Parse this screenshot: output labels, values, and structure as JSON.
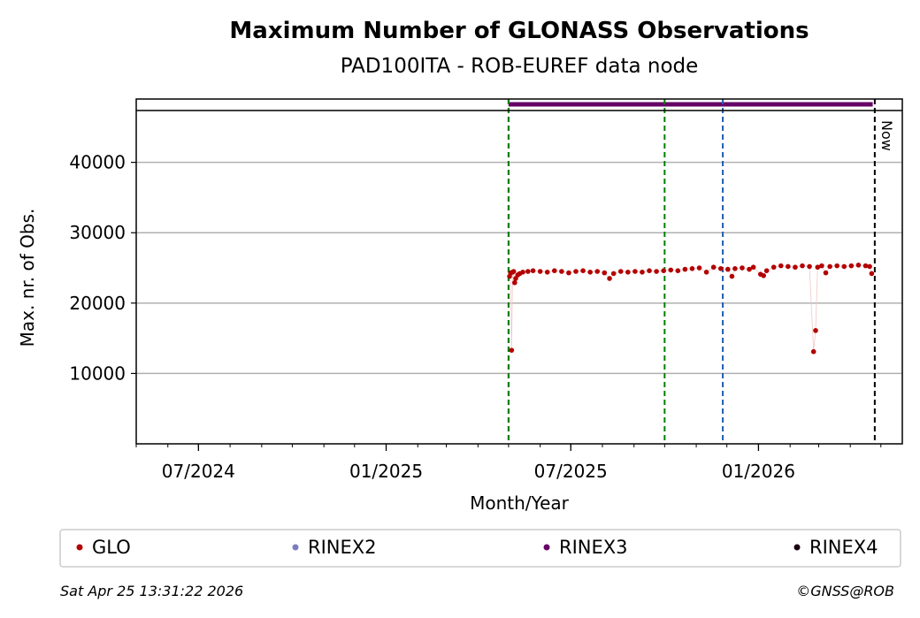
{
  "chart_data": {
    "type": "scatter",
    "title": "Maximum Number of GLONASS Observations",
    "subtitle": "PAD100ITA - ROB-EUREF data node",
    "xlabel": "Month/Year",
    "ylabel": "Max. nr. of Obs.",
    "xlim": [
      "2024-05-01",
      "2026-05-22"
    ],
    "ylim": [
      0,
      49000
    ],
    "x_ticks": [
      {
        "date": "2024-07-01",
        "label": "07/2024"
      },
      {
        "date": "2025-01-01",
        "label": "01/2025"
      },
      {
        "date": "2025-07-01",
        "label": "07/2025"
      },
      {
        "date": "2026-01-01",
        "label": "01/2026"
      }
    ],
    "y_ticks": [
      10000,
      20000,
      30000,
      40000
    ],
    "y_tick_labels": [
      "10000",
      "20000",
      "30000",
      "40000"
    ],
    "grid": "horizontal",
    "legend_placement": "bottom",
    "series": [
      {
        "name": "GLO",
        "color": "#b30000",
        "points": [
          [
            "2025-05-02",
            23800
          ],
          [
            "2025-05-03",
            24300
          ],
          [
            "2025-05-04",
            13300
          ],
          [
            "2025-05-05",
            24400
          ],
          [
            "2025-05-06",
            24500
          ],
          [
            "2025-05-07",
            22900
          ],
          [
            "2025-05-08",
            23500
          ],
          [
            "2025-05-10",
            24000
          ],
          [
            "2025-05-12",
            24200
          ],
          [
            "2025-05-15",
            24400
          ],
          [
            "2025-05-20",
            24500
          ],
          [
            "2025-05-25",
            24600
          ],
          [
            "2025-06-01",
            24500
          ],
          [
            "2025-06-08",
            24400
          ],
          [
            "2025-06-15",
            24600
          ],
          [
            "2025-06-22",
            24500
          ],
          [
            "2025-06-29",
            24300
          ],
          [
            "2025-07-06",
            24500
          ],
          [
            "2025-07-13",
            24600
          ],
          [
            "2025-07-20",
            24400
          ],
          [
            "2025-07-27",
            24500
          ],
          [
            "2025-08-03",
            24300
          ],
          [
            "2025-08-08",
            23500
          ],
          [
            "2025-08-12",
            24200
          ],
          [
            "2025-08-19",
            24500
          ],
          [
            "2025-08-26",
            24400
          ],
          [
            "2025-09-02",
            24500
          ],
          [
            "2025-09-09",
            24400
          ],
          [
            "2025-09-16",
            24600
          ],
          [
            "2025-09-23",
            24500
          ],
          [
            "2025-09-30",
            24600
          ],
          [
            "2025-10-07",
            24700
          ],
          [
            "2025-10-14",
            24600
          ],
          [
            "2025-10-21",
            24800
          ],
          [
            "2025-10-28",
            24900
          ],
          [
            "2025-11-04",
            25000
          ],
          [
            "2025-11-11",
            24400
          ],
          [
            "2025-11-18",
            25100
          ],
          [
            "2025-11-25",
            24900
          ],
          [
            "2025-12-02",
            24800
          ],
          [
            "2025-12-06",
            23800
          ],
          [
            "2025-12-09",
            24900
          ],
          [
            "2025-12-16",
            25000
          ],
          [
            "2025-12-23",
            24800
          ],
          [
            "2025-12-27",
            25100
          ],
          [
            "2026-01-03",
            24100
          ],
          [
            "2026-01-06",
            23900
          ],
          [
            "2026-01-09",
            24600
          ],
          [
            "2026-01-16",
            25100
          ],
          [
            "2026-01-23",
            25300
          ],
          [
            "2026-01-30",
            25200
          ],
          [
            "2026-02-06",
            25100
          ],
          [
            "2026-02-13",
            25300
          ],
          [
            "2026-02-20",
            25200
          ],
          [
            "2026-02-24",
            13100
          ],
          [
            "2026-02-26",
            16100
          ],
          [
            "2026-02-28",
            25100
          ],
          [
            "2026-03-04",
            25300
          ],
          [
            "2026-03-08",
            24300
          ],
          [
            "2026-03-12",
            25200
          ],
          [
            "2026-03-19",
            25300
          ],
          [
            "2026-03-26",
            25200
          ],
          [
            "2026-04-02",
            25300
          ],
          [
            "2026-04-09",
            25400
          ],
          [
            "2026-04-16",
            25300
          ],
          [
            "2026-04-20",
            25200
          ],
          [
            "2026-04-22",
            24200
          ]
        ]
      },
      {
        "name": "RINEX2",
        "color": "#7b7bbf",
        "points": []
      },
      {
        "name": "RINEX3",
        "color": "#660066",
        "band": {
          "from": "2025-05-01",
          "to": "2026-04-23"
        }
      },
      {
        "name": "RINEX4",
        "color": "#1a0013",
        "points": []
      }
    ],
    "vertical_lines": [
      {
        "date": "2025-05-01",
        "color": "#cc0000",
        "style": "dashed"
      },
      {
        "date": "2025-05-01",
        "color": "#008000",
        "style": "dashed"
      },
      {
        "date": "2025-10-01",
        "color": "#008000",
        "style": "dashed"
      },
      {
        "date": "2025-11-27",
        "color": "#1f5fb0",
        "style": "dashed"
      },
      {
        "date": "2026-04-25",
        "color": "#000000",
        "style": "dashed",
        "label": "Now"
      }
    ]
  },
  "footer": {
    "timestamp": "Sat Apr 25 13:31:22 2026",
    "credit": "©GNSS@ROB"
  }
}
